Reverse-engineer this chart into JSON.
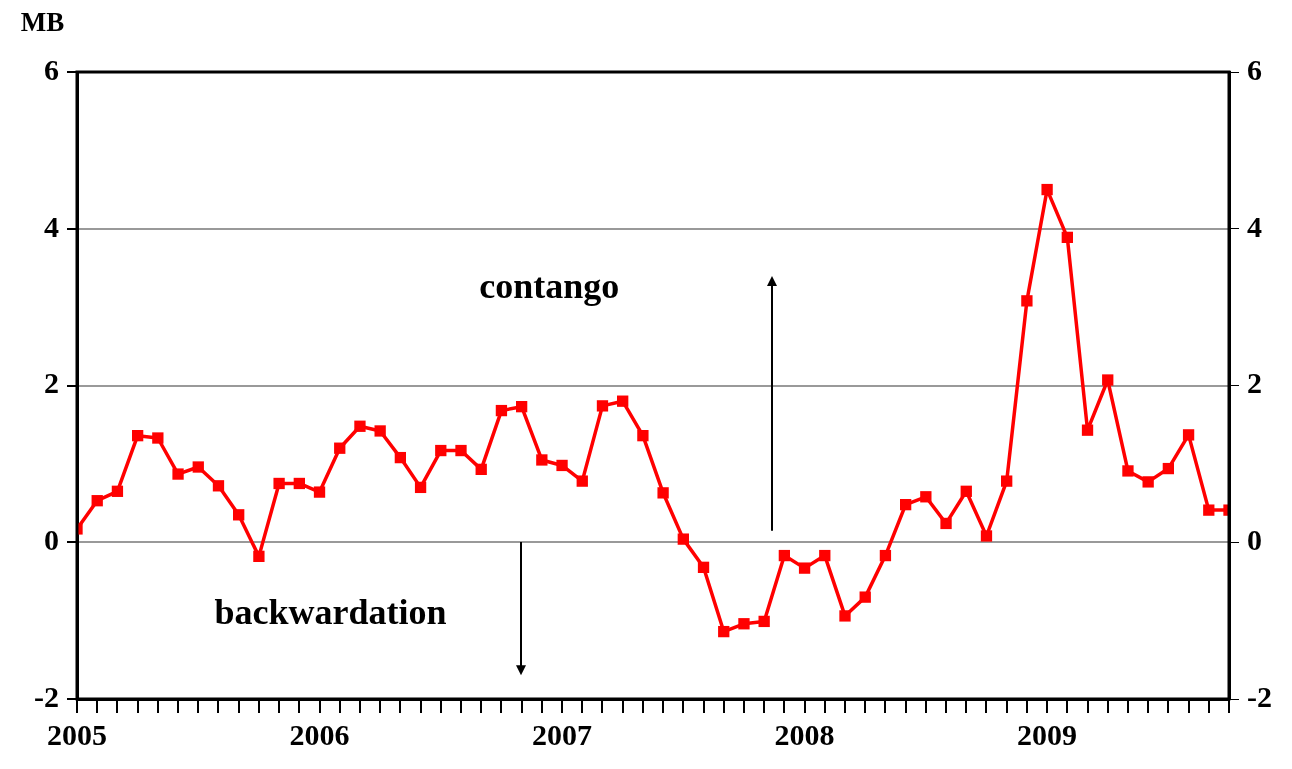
{
  "chart_data": {
    "type": "line",
    "annotations": [
      "MB",
      "contango",
      "backwardation"
    ],
    "x": [
      "2005-01",
      "2005-02",
      "2005-03",
      "2005-04",
      "2005-05",
      "2005-06",
      "2005-07",
      "2005-08",
      "2005-09",
      "2005-10",
      "2005-11",
      "2005-12",
      "2006-01",
      "2006-02",
      "2006-03",
      "2006-04",
      "2006-05",
      "2006-06",
      "2006-07",
      "2006-08",
      "2006-09",
      "2006-10",
      "2006-11",
      "2006-12",
      "2007-01",
      "2007-02",
      "2007-03",
      "2007-04",
      "2007-05",
      "2007-06",
      "2007-07",
      "2007-08",
      "2007-09",
      "2007-10",
      "2007-11",
      "2007-12",
      "2008-01",
      "2008-02",
      "2008-03",
      "2008-04",
      "2008-05",
      "2008-06",
      "2008-07",
      "2008-08",
      "2008-09",
      "2008-10",
      "2008-11",
      "2008-12",
      "2009-01",
      "2009-02",
      "2009-03",
      "2009-04",
      "2009-05",
      "2009-06",
      "2009-07",
      "2009-08",
      "2009-09",
      "2009-10"
    ],
    "series": [
      {
        "color": "#ff0000",
        "values": [
          0.17,
          0.53,
          0.65,
          1.36,
          1.33,
          0.87,
          0.96,
          0.72,
          0.35,
          -0.18,
          0.75,
          0.75,
          0.64,
          1.2,
          1.48,
          1.42,
          1.08,
          0.7,
          1.17,
          1.17,
          0.93,
          1.68,
          1.73,
          1.05,
          0.98,
          0.78,
          1.74,
          1.8,
          1.36,
          0.63,
          0.04,
          -0.32,
          -1.14,
          -1.04,
          -1.01,
          -0.17,
          -0.33,
          -0.17,
          -0.94,
          -0.7,
          -0.17,
          0.48,
          0.58,
          0.24,
          0.65,
          0.08,
          0.78,
          3.08,
          4.5,
          3.89,
          1.43,
          2.07,
          0.91,
          0.77,
          0.94,
          1.37,
          0.41,
          0.41
        ]
      }
    ],
    "xlim": [
      "2005-01",
      "2009-10"
    ],
    "xticks": [
      {
        "value": "2005-01",
        "label": "2005"
      },
      {
        "value": "2005-02",
        "label": null
      },
      {
        "value": "2005-03",
        "label": null
      },
      {
        "value": "2005-04",
        "label": null
      },
      {
        "value": "2005-05",
        "label": null
      },
      {
        "value": "2005-06",
        "label": null
      },
      {
        "value": "2005-07",
        "label": null
      },
      {
        "value": "2005-08",
        "label": null
      },
      {
        "value": "2005-09",
        "label": null
      },
      {
        "value": "2005-10",
        "label": null
      },
      {
        "value": "2005-11",
        "label": null
      },
      {
        "value": "2005-12",
        "label": null
      },
      {
        "value": "2006-01",
        "label": "2006"
      },
      {
        "value": "2006-02",
        "label": null
      },
      {
        "value": "2006-03",
        "label": null
      },
      {
        "value": "2006-04",
        "label": null
      },
      {
        "value": "2006-05",
        "label": null
      },
      {
        "value": "2006-06",
        "label": null
      },
      {
        "value": "2006-07",
        "label": null
      },
      {
        "value": "2006-08",
        "label": null
      },
      {
        "value": "2006-09",
        "label": null
      },
      {
        "value": "2006-10",
        "label": null
      },
      {
        "value": "2006-11",
        "label": null
      },
      {
        "value": "2006-12",
        "label": null
      },
      {
        "value": "2007-01",
        "label": "2007"
      },
      {
        "value": "2007-02",
        "label": null
      },
      {
        "value": "2007-03",
        "label": null
      },
      {
        "value": "2007-04",
        "label": null
      },
      {
        "value": "2007-05",
        "label": null
      },
      {
        "value": "2007-06",
        "label": null
      },
      {
        "value": "2007-07",
        "label": null
      },
      {
        "value": "2007-08",
        "label": null
      },
      {
        "value": "2007-09",
        "label": null
      },
      {
        "value": "2007-10",
        "label": null
      },
      {
        "value": "2007-11",
        "label": null
      },
      {
        "value": "2007-12",
        "label": null
      },
      {
        "value": "2008-01",
        "label": "2008"
      },
      {
        "value": "2008-02",
        "label": null
      },
      {
        "value": "2008-03",
        "label": null
      },
      {
        "value": "2008-04",
        "label": null
      },
      {
        "value": "2008-05",
        "label": null
      },
      {
        "value": "2008-06",
        "label": null
      },
      {
        "value": "2008-07",
        "label": null
      },
      {
        "value": "2008-08",
        "label": null
      },
      {
        "value": "2008-09",
        "label": null
      },
      {
        "value": "2008-10",
        "label": null
      },
      {
        "value": "2008-11",
        "label": null
      },
      {
        "value": "2008-12",
        "label": null
      },
      {
        "value": "2009-01",
        "label": "2009"
      },
      {
        "value": "2009-02",
        "label": null
      },
      {
        "value": "2009-03",
        "label": null
      },
      {
        "value": "2009-04",
        "label": null
      },
      {
        "value": "2009-05",
        "label": null
      },
      {
        "value": "2009-06",
        "label": null
      },
      {
        "value": "2009-07",
        "label": null
      },
      {
        "value": "2009-08",
        "label": null
      },
      {
        "value": "2009-09",
        "label": null
      },
      {
        "value": "2009-10",
        "label": null
      }
    ],
    "ylim": [
      -2,
      6
    ],
    "yticks": [
      -2,
      0,
      2,
      4,
      6
    ],
    "y2lim": [
      -2,
      6
    ],
    "y2ticks": [
      -2,
      0,
      2,
      4,
      6
    ],
    "grid": "y",
    "legend": false,
    "marker": "square",
    "line_style": "solid"
  }
}
